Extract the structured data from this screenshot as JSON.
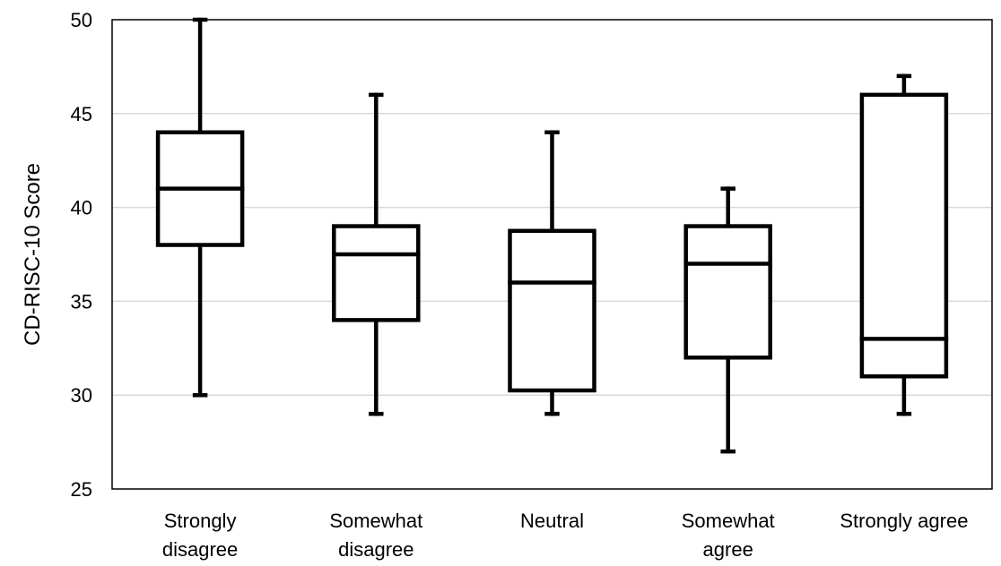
{
  "chart_data": {
    "type": "box",
    "categories": [
      [
        "Strongly",
        "disagree"
      ],
      [
        "Somewhat",
        "disagree"
      ],
      [
        "Neutral"
      ],
      [
        "Somewhat",
        "agree"
      ],
      [
        "Strongly agree"
      ]
    ],
    "boxes": [
      {
        "min": 30,
        "q1": 38,
        "median": 41,
        "q3": 44,
        "max": 50
      },
      {
        "min": 29,
        "q1": 34,
        "median": 37.5,
        "q3": 39,
        "max": 46
      },
      {
        "min": 29,
        "q1": 30.25,
        "median": 36,
        "q3": 38.75,
        "max": 44
      },
      {
        "min": 27,
        "q1": 32,
        "median": 37,
        "q3": 39,
        "max": 41
      },
      {
        "min": 29,
        "q1": 31,
        "median": 33,
        "q3": 46,
        "max": 47
      }
    ],
    "ylabel": "CD-RISC-10 Score",
    "xlabel": "",
    "ylim": [
      25,
      50
    ],
    "yticks": [
      25,
      30,
      35,
      40,
      45,
      50
    ],
    "grid": true,
    "colors": {
      "box": "#000000",
      "grid": "#d9d9d9",
      "frame": "#000000"
    }
  }
}
